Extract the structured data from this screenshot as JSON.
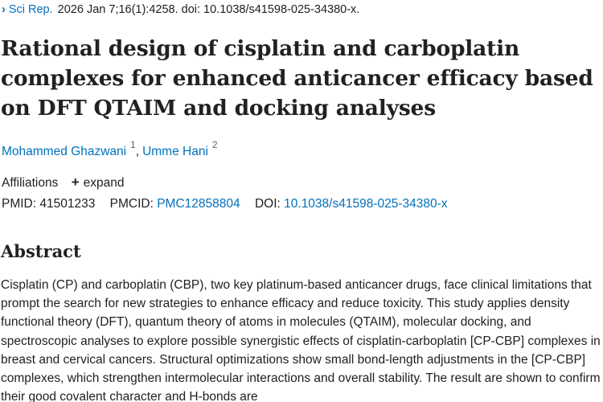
{
  "citation": {
    "journal": "Sci Rep.",
    "details": "2026 Jan 7;16(1):4258. doi: 10.1038/s41598-025-34380-x."
  },
  "title": "Rational design of cisplatin and carboplatin complexes for enhanced anticancer efficacy based on DFT QTAIM and docking analyses",
  "authors": [
    {
      "name": "Mohammed Ghazwani",
      "aff": "1"
    },
    {
      "name": "Umme Hani",
      "aff": "2"
    }
  ],
  "affiliations": {
    "label": "Affiliations",
    "toggle": "expand"
  },
  "ids": {
    "pmid_label": "PMID:",
    "pmid": "41501233",
    "pmcid_label": "PMCID:",
    "pmcid": "PMC12858804",
    "doi_label": "DOI:",
    "doi": "10.1038/s41598-025-34380-x"
  },
  "abstract": {
    "heading": "Abstract",
    "text": "Cisplatin (CP) and carboplatin (CBP), two key platinum-based anticancer drugs, face clinical limitations that prompt the search for new strategies to enhance efficacy and reduce toxicity. This study applies density functional theory (DFT), quantum theory of atoms in molecules (QTAIM), molecular docking, and spectroscopic analyses to explore possible synergistic effects of cisplatin-carboplatin [CP-CBP] complexes in breast and cervical cancers. Structural optimizations show small bond-length adjustments in the [CP-CBP] complexes, which strengthen intermolecular interactions and overall stability. The result are shown to confirm their good covalent character and H-bonds are"
  }
}
